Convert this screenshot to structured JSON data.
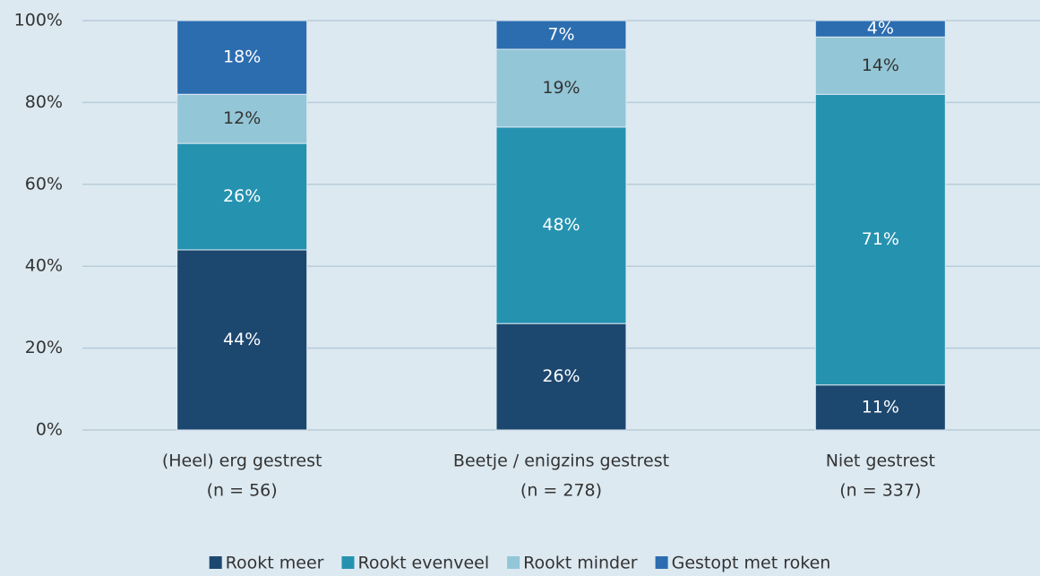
{
  "chart_data": {
    "type": "stacked_bar",
    "categories": [
      [
        "(Heel) erg gestrest",
        "(n = 56)"
      ],
      [
        "Beetje / enigzins gestrest",
        "(n = 278)"
      ],
      [
        "Niet gestrest",
        "(n = 337)"
      ]
    ],
    "series": [
      {
        "name": "Rookt meer",
        "color": "#1c476f",
        "label_color": "#ffffff",
        "values": [
          44,
          26,
          11
        ],
        "value_labels": [
          "44%",
          "26%",
          "11%"
        ]
      },
      {
        "name": "Rookt evenveel",
        "color": "#2592b0",
        "label_color": "#ffffff",
        "values": [
          26,
          48,
          71
        ],
        "value_labels": [
          "26%",
          "48%",
          "71%"
        ]
      },
      {
        "name": "Rookt minder",
        "color": "#93c6d7",
        "label_color": "#333333",
        "values": [
          12,
          19,
          14
        ],
        "value_labels": [
          "12%",
          "19%",
          "14%"
        ]
      },
      {
        "name": "Gestopt met roken",
        "color": "#2c6db0",
        "label_color": "#ffffff",
        "values": [
          18,
          7,
          4
        ],
        "value_labels": [
          "18%",
          "7%",
          "4%"
        ]
      }
    ],
    "ylim": [
      0,
      100
    ],
    "yticks": [
      {
        "value": 0,
        "label": "0%"
      },
      {
        "value": 20,
        "label": "20%"
      },
      {
        "value": 40,
        "label": "40%"
      },
      {
        "value": 60,
        "label": "60%"
      },
      {
        "value": 80,
        "label": "80%"
      },
      {
        "value": 100,
        "label": "100%"
      }
    ],
    "grid": true,
    "legend": "bottom"
  }
}
